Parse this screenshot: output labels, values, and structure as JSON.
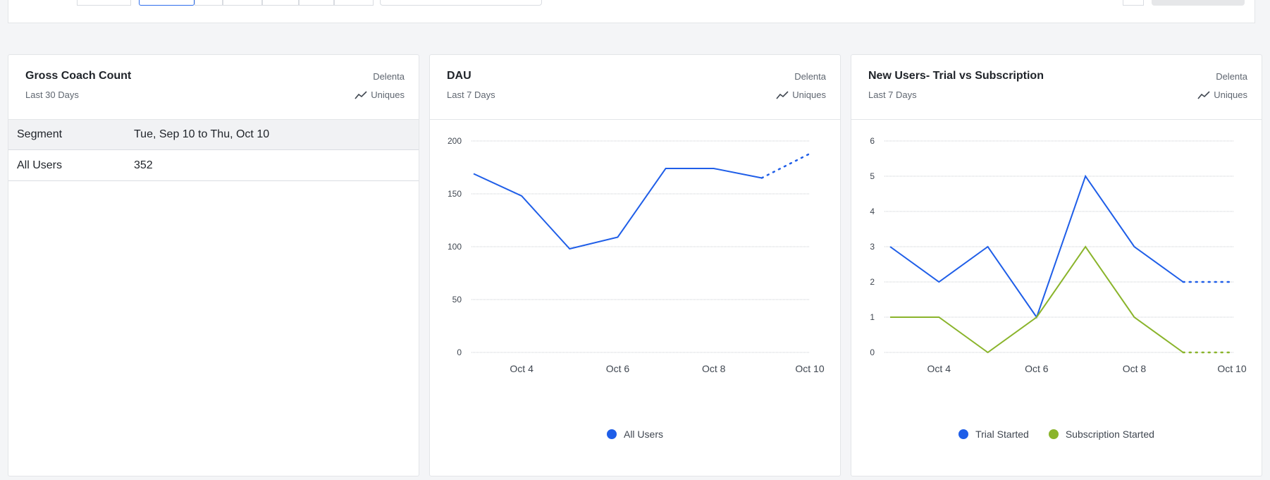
{
  "colors": {
    "blue": "#1f5ee8",
    "green": "#8ab42b",
    "grid": "#c9ccd1"
  },
  "cards": [
    {
      "title": "Gross Coach Count",
      "subtitle": "Last 30 Days",
      "source": "Delenta",
      "metric": "Uniques",
      "table": {
        "headers": [
          "Segment",
          "Tue, Sep 10 to Thu, Oct 10"
        ],
        "rows": [
          [
            "All Users",
            "352"
          ]
        ]
      }
    },
    {
      "title": "DAU",
      "subtitle": "Last 7 Days",
      "source": "Delenta",
      "metric": "Uniques",
      "legend": [
        "All Users"
      ]
    },
    {
      "title": "New Users- Trial vs Subscription",
      "subtitle": "Last 7 Days",
      "source": "Delenta",
      "metric": "Uniques",
      "legend": [
        "Trial Started",
        "Subscription Started"
      ]
    }
  ],
  "chart_data": [
    {
      "type": "line",
      "x": [
        "Oct 3",
        "Oct 4",
        "Oct 5",
        "Oct 6",
        "Oct 7",
        "Oct 8",
        "Oct 9",
        "Oct 10"
      ],
      "x_tick_labels": [
        "Oct 4",
        "Oct 6",
        "Oct 8",
        "Oct 10"
      ],
      "y_ticks": [
        "0",
        "50",
        "100",
        "150",
        "200"
      ],
      "ylim": [
        0,
        200
      ],
      "grid": true,
      "legend_position": "bottom-center",
      "partial_last_point": true,
      "series": [
        {
          "name": "All Users",
          "color": "#1f5ee8",
          "values": [
            169,
            148,
            98,
            109,
            174,
            174,
            165,
            188
          ]
        }
      ]
    },
    {
      "type": "line",
      "x": [
        "Oct 3",
        "Oct 4",
        "Oct 5",
        "Oct 6",
        "Oct 7",
        "Oct 8",
        "Oct 9",
        "Oct 10"
      ],
      "x_tick_labels": [
        "Oct 4",
        "Oct 6",
        "Oct 8",
        "Oct 10"
      ],
      "y_ticks": [
        "0",
        "1",
        "2",
        "3",
        "4",
        "5",
        "6"
      ],
      "ylim": [
        0,
        6
      ],
      "grid": true,
      "legend_position": "bottom-center",
      "partial_last_point": true,
      "series": [
        {
          "name": "Trial Started",
          "color": "#1f5ee8",
          "values": [
            3,
            2,
            3,
            1,
            5,
            3,
            2,
            2
          ]
        },
        {
          "name": "Subscription Started",
          "color": "#8ab42b",
          "values": [
            1,
            1,
            0,
            1,
            3,
            1,
            0,
            0
          ]
        }
      ]
    }
  ]
}
